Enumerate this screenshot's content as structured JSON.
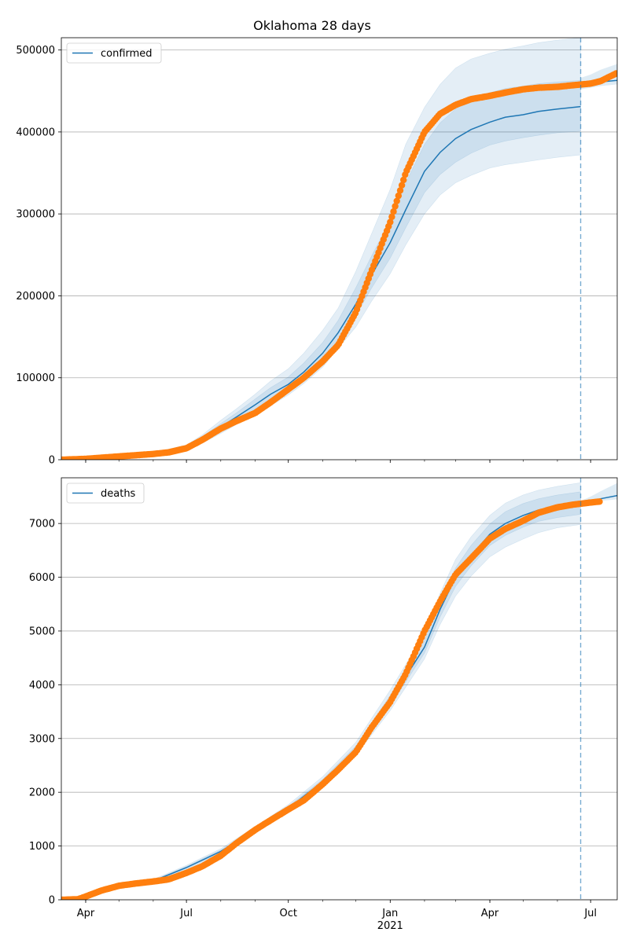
{
  "chart_data": {
    "title": "Oklahoma 28 days",
    "x_tick_labels": [
      "Apr",
      "Jul",
      "Oct",
      "Jan",
      "Apr",
      "Jul"
    ],
    "x_tick_dates": [
      "2020-04-01",
      "2020-07-01",
      "2020-10-01",
      "2021-01-01",
      "2021-04-01",
      "2021-07-01"
    ],
    "x_year_label": "2021",
    "xlim": [
      "2020-03-10",
      "2021-07-25"
    ],
    "forecast_start": "2021-06-22",
    "grid": "horizontal",
    "colors": {
      "model_line": "#1f77b4",
      "band": "#1f77b4",
      "observed": "#ff7f0e",
      "forecast_line": "#1f77b4",
      "grid": "#b0b0b0"
    },
    "panels": [
      {
        "type": "line",
        "legend": "confirmed",
        "legend_position": "top-left",
        "ylim": [
          0,
          515000
        ],
        "y_ticks": [
          0,
          100000,
          200000,
          300000,
          400000,
          500000
        ],
        "y_tick_labels": [
          "0",
          "100000",
          "200000",
          "300000",
          "400000",
          "500000"
        ],
        "model": {
          "x": [
            "2020-03-10",
            "2020-04-01",
            "2020-05-01",
            "2020-06-01",
            "2020-07-01",
            "2020-07-15",
            "2020-08-01",
            "2020-08-15",
            "2020-09-01",
            "2020-09-15",
            "2020-10-01",
            "2020-10-15",
            "2020-11-01",
            "2020-11-15",
            "2020-12-01",
            "2020-12-15",
            "2021-01-01",
            "2021-01-15",
            "2021-02-01",
            "2021-02-15",
            "2021-03-01",
            "2021-03-15",
            "2021-04-01",
            "2021-04-15",
            "2021-05-01",
            "2021-05-15",
            "2021-06-01",
            "2021-06-22"
          ],
          "y": [
            0,
            500,
            3000,
            7000,
            15000,
            25000,
            40000,
            52000,
            67000,
            80000,
            92000,
            107000,
            130000,
            155000,
            190000,
            225000,
            265000,
            305000,
            352000,
            375000,
            392000,
            403000,
            412000,
            418000,
            421000,
            425000,
            428000,
            431000
          ],
          "bands": [
            {
              "lower": [
                0,
                400,
                2500,
                5800,
                12000,
                20000,
                32000,
                43000,
                55000,
                66000,
                79000,
                93000,
                113000,
                136000,
                162000,
                193000,
                227000,
                262000,
                300000,
                323000,
                338000,
                347000,
                356000,
                360000,
                363000,
                366000,
                369000,
                372000
              ],
              "upper": [
                0,
                650,
                3600,
                8500,
                18000,
                30000,
                48000,
                62000,
                80000,
                96000,
                111000,
                130000,
                158000,
                185000,
                230000,
                275000,
                330000,
                385000,
                430000,
                458000,
                478000,
                489000,
                496000,
                501000,
                505000,
                509000,
                512000,
                515000
              ]
            },
            {
              "lower": [
                0,
                450,
                2700,
                6200,
                13500,
                22000,
                36000,
                48000,
                61000,
                73000,
                85000,
                100000,
                121000,
                145000,
                176000,
                209000,
                246000,
                283000,
                326000,
                348000,
                363000,
                374000,
                384000,
                389000,
                393000,
                396000,
                399000,
                401000
              ],
              "upper": [
                0,
                580,
                3300,
                7800,
                16500,
                28000,
                44000,
                57000,
                74000,
                88000,
                101000,
                118000,
                143000,
                170000,
                210000,
                248000,
                292000,
                338000,
                385000,
                411000,
                428000,
                440000,
                448000,
                453000,
                456000,
                459000,
                461000,
                463000
              ]
            }
          ]
        },
        "observed": {
          "x": [
            "2020-03-10",
            "2020-04-01",
            "2020-05-01",
            "2020-06-01",
            "2020-06-15",
            "2020-07-01",
            "2020-07-15",
            "2020-08-01",
            "2020-08-15",
            "2020-09-01",
            "2020-09-15",
            "2020-10-01",
            "2020-10-15",
            "2020-11-01",
            "2020-11-15",
            "2020-12-01",
            "2020-12-15",
            "2021-01-01",
            "2021-01-15",
            "2021-02-01",
            "2021-02-15",
            "2021-03-01",
            "2021-03-15",
            "2021-04-01",
            "2021-04-15",
            "2021-05-01",
            "2021-05-15",
            "2021-06-01",
            "2021-06-15",
            "2021-07-01",
            "2021-07-10",
            "2021-07-25"
          ],
          "y": [
            0,
            1000,
            4000,
            7000,
            9000,
            14000,
            24000,
            38000,
            47000,
            57000,
            70000,
            86000,
            100000,
            120000,
            140000,
            180000,
            230000,
            290000,
            350000,
            400000,
            422000,
            433000,
            440000,
            444000,
            448000,
            452000,
            454000,
            455000,
            457000,
            459000,
            462000,
            472000
          ]
        },
        "forecast": {
          "x": [
            "2021-06-22",
            "2021-07-01",
            "2021-07-10",
            "2021-07-25"
          ],
          "y": [
            457000,
            459000,
            461000,
            463000
          ],
          "lower": [
            452000,
            454000,
            456000,
            458000
          ],
          "upper": [
            466000,
            470000,
            476000,
            483000
          ]
        }
      },
      {
        "type": "line",
        "legend": "deaths",
        "legend_position": "top-left",
        "ylim": [
          0,
          7850
        ],
        "y_ticks": [
          0,
          1000,
          2000,
          3000,
          4000,
          5000,
          6000,
          7000
        ],
        "y_tick_labels": [
          "0",
          "1000",
          "2000",
          "3000",
          "4000",
          "5000",
          "6000",
          "7000"
        ],
        "model": {
          "x": [
            "2020-03-10",
            "2020-04-01",
            "2020-05-01",
            "2020-06-01",
            "2020-07-01",
            "2020-08-01",
            "2020-09-01",
            "2020-10-01",
            "2020-11-01",
            "2020-12-01",
            "2021-01-01",
            "2021-02-01",
            "2021-02-15",
            "2021-03-01",
            "2021-03-15",
            "2021-04-01",
            "2021-04-15",
            "2021-05-01",
            "2021-05-15",
            "2021-06-01",
            "2021-06-22"
          ],
          "y": [
            0,
            40,
            250,
            350,
            600,
            900,
            1300,
            1700,
            2200,
            2800,
            3700,
            4700,
            5400,
            6000,
            6400,
            6800,
            7000,
            7150,
            7250,
            7320,
            7380
          ],
          "bands": [
            {
              "lower": [
                0,
                30,
                230,
                320,
                560,
                850,
                1240,
                1630,
                2120,
                2690,
                3520,
                4480,
                5120,
                5650,
                6020,
                6380,
                6560,
                6710,
                6830,
                6920,
                6980
              ],
              "upper": [
                0,
                50,
                270,
                380,
                640,
                950,
                1360,
                1770,
                2290,
                2930,
                3900,
                4950,
                5700,
                6330,
                6750,
                7150,
                7380,
                7530,
                7620,
                7690,
                7760
              ]
            },
            {
              "lower": [
                0,
                35,
                240,
                335,
                580,
                875,
                1270,
                1665,
                2160,
                2740,
                3610,
                4590,
                5260,
                5830,
                6210,
                6590,
                6780,
                6930,
                7040,
                7110,
                7170
              ],
              "upper": [
                0,
                45,
                260,
                365,
                620,
                925,
                1330,
                1735,
                2240,
                2860,
                3800,
                4820,
                5540,
                6170,
                6590,
                6990,
                7220,
                7370,
                7460,
                7530,
                7590
              ]
            }
          ]
        },
        "observed": {
          "x": [
            "2020-03-10",
            "2020-03-25",
            "2020-04-01",
            "2020-04-15",
            "2020-05-01",
            "2020-05-15",
            "2020-06-01",
            "2020-06-15",
            "2020-07-01",
            "2020-07-15",
            "2020-08-01",
            "2020-08-15",
            "2020-09-01",
            "2020-09-15",
            "2020-10-01",
            "2020-10-15",
            "2020-11-01",
            "2020-11-15",
            "2020-12-01",
            "2020-12-15",
            "2021-01-01",
            "2021-01-15",
            "2021-02-01",
            "2021-02-15",
            "2021-03-01",
            "2021-03-15",
            "2021-04-01",
            "2021-04-15",
            "2021-05-01",
            "2021-05-15",
            "2021-06-01",
            "2021-06-15",
            "2021-07-01",
            "2021-07-10"
          ],
          "y": [
            0,
            10,
            60,
            170,
            260,
            300,
            340,
            380,
            500,
            620,
            820,
            1050,
            1300,
            1480,
            1680,
            1850,
            2150,
            2420,
            2750,
            3200,
            3680,
            4200,
            5000,
            5550,
            6050,
            6350,
            6720,
            6900,
            7050,
            7200,
            7300,
            7350,
            7390,
            7410
          ]
        },
        "forecast": {
          "x": [
            "2021-06-22",
            "2021-07-01",
            "2021-07-10",
            "2021-07-25"
          ],
          "y": [
            7380,
            7420,
            7460,
            7520
          ],
          "lower": [
            7360,
            7390,
            7420,
            7450
          ],
          "upper": [
            7420,
            7500,
            7600,
            7750
          ]
        }
      }
    ]
  }
}
